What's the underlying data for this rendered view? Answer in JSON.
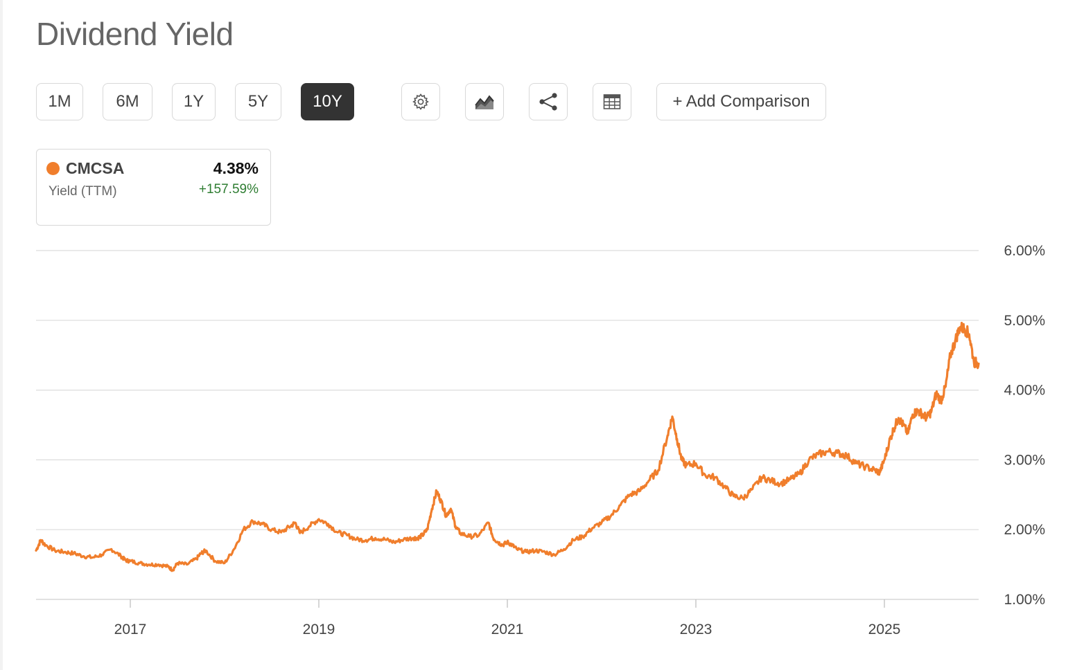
{
  "title": "Dividend Yield",
  "ranges": [
    "1M",
    "6M",
    "1Y",
    "5Y",
    "10Y"
  ],
  "active_range": "10Y",
  "tools": {
    "settings_icon": "gear-icon",
    "chart_type_icon": "area-chart-icon",
    "share_icon": "share-icon",
    "table_icon": "table-icon",
    "add_comparison": "+ Add Comparison"
  },
  "legend": {
    "ticker": "CMCSA",
    "value": "4.38%",
    "metric": "Yield (TTM)",
    "change": "+157.59%",
    "series_color": "#f07e2c",
    "change_color": "#2e7d32"
  },
  "chart_data": {
    "type": "line",
    "title": "",
    "xlabel": "",
    "ylabel": "",
    "ylim": [
      1.0,
      6.0
    ],
    "xlim": [
      2016.0,
      2026.0
    ],
    "y_ticks": [
      "1.00%",
      "2.00%",
      "3.00%",
      "4.00%",
      "5.00%",
      "6.00%"
    ],
    "x_ticks": [
      "2017",
      "2019",
      "2021",
      "2023",
      "2025"
    ],
    "grid": "horizontal",
    "series": [
      {
        "name": "CMCSA",
        "color": "#f07e2c",
        "x": [
          2016.0,
          2016.05,
          2016.1,
          2016.2,
          2016.3,
          2016.4,
          2016.5,
          2016.6,
          2016.7,
          2016.8,
          2016.9,
          2016.95,
          2017.0,
          2017.1,
          2017.2,
          2017.3,
          2017.4,
          2017.45,
          2017.5,
          2017.6,
          2017.7,
          2017.75,
          2017.8,
          2017.9,
          2018.0,
          2018.1,
          2018.2,
          2018.3,
          2018.4,
          2018.5,
          2018.6,
          2018.7,
          2018.75,
          2018.8,
          2018.9,
          2019.0,
          2019.1,
          2019.2,
          2019.3,
          2019.4,
          2019.5,
          2019.6,
          2019.7,
          2019.8,
          2019.9,
          2020.0,
          2020.05,
          2020.1,
          2020.15,
          2020.2,
          2020.25,
          2020.3,
          2020.35,
          2020.4,
          2020.45,
          2020.5,
          2020.6,
          2020.7,
          2020.8,
          2020.85,
          2020.9,
          2020.95,
          2021.0,
          2021.05,
          2021.1,
          2021.2,
          2021.3,
          2021.4,
          2021.5,
          2021.6,
          2021.7,
          2021.8,
          2021.9,
          2022.0,
          2022.1,
          2022.2,
          2022.3,
          2022.4,
          2022.5,
          2022.6,
          2022.7,
          2022.75,
          2022.8,
          2022.85,
          2022.9,
          2023.0,
          2023.1,
          2023.2,
          2023.3,
          2023.4,
          2023.5,
          2023.6,
          2023.7,
          2023.8,
          2023.9,
          2024.0,
          2024.1,
          2024.2,
          2024.3,
          2024.4,
          2024.5,
          2024.6,
          2024.7,
          2024.8,
          2024.9,
          2024.95,
          2025.0,
          2025.05,
          2025.1,
          2025.15,
          2025.2,
          2025.25,
          2025.3,
          2025.35,
          2025.4,
          2025.45,
          2025.5,
          2025.55,
          2025.6,
          2025.65,
          2025.7,
          2025.75,
          2025.8,
          2025.85,
          2025.9,
          2025.95,
          2026.0
        ],
        "values": [
          1.7,
          1.85,
          1.78,
          1.7,
          1.68,
          1.66,
          1.62,
          1.6,
          1.64,
          1.72,
          1.62,
          1.56,
          1.55,
          1.52,
          1.5,
          1.5,
          1.47,
          1.42,
          1.52,
          1.5,
          1.58,
          1.66,
          1.7,
          1.55,
          1.52,
          1.72,
          2.0,
          2.12,
          2.08,
          2.0,
          1.96,
          2.05,
          2.1,
          1.95,
          2.05,
          2.15,
          2.08,
          1.96,
          1.92,
          1.86,
          1.85,
          1.88,
          1.86,
          1.82,
          1.86,
          1.88,
          1.88,
          1.92,
          2.0,
          2.3,
          2.55,
          2.4,
          2.2,
          2.3,
          2.05,
          1.95,
          1.9,
          1.92,
          2.1,
          1.88,
          1.82,
          1.78,
          1.82,
          1.78,
          1.72,
          1.68,
          1.7,
          1.68,
          1.64,
          1.72,
          1.85,
          1.9,
          2.02,
          2.1,
          2.2,
          2.35,
          2.5,
          2.55,
          2.7,
          2.85,
          3.35,
          3.62,
          3.3,
          3.0,
          2.92,
          2.95,
          2.78,
          2.75,
          2.62,
          2.48,
          2.45,
          2.58,
          2.75,
          2.7,
          2.66,
          2.72,
          2.8,
          3.0,
          3.08,
          3.12,
          3.1,
          3.06,
          2.95,
          2.9,
          2.85,
          2.82,
          3.0,
          3.25,
          3.45,
          3.6,
          3.5,
          3.38,
          3.65,
          3.7,
          3.66,
          3.6,
          3.7,
          3.95,
          3.85,
          4.05,
          4.5,
          4.7,
          4.9,
          4.88,
          4.8,
          4.4,
          4.38
        ]
      }
    ]
  }
}
